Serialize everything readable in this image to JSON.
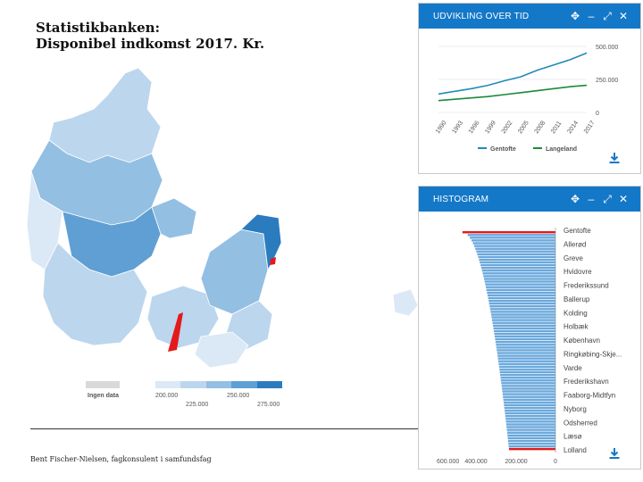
{
  "slide": {
    "title_line1": "Statistikbanken:",
    "title_line2": "Disponibel indkomst 2017. Kr.",
    "footer": "Bent Fischer-Nielsen, fagkonsulent i samfundsfag"
  },
  "map_legend": {
    "no_data_label": "Ingen data",
    "ticks_top": [
      "200.000",
      "250.000"
    ],
    "ticks_bottom": [
      "225.000",
      "275.000"
    ],
    "colors": [
      "#dbe9f6",
      "#bcd6ee",
      "#93bfe3",
      "#5f9fd3",
      "#2b7bbf"
    ],
    "no_data_color": "#d9d9d9",
    "highlight_color": "#e31a1c"
  },
  "panel_development": {
    "title": "UDVIKLING OVER TID",
    "icons": [
      "move-icon",
      "minimize-icon",
      "expand-icon",
      "close-icon"
    ],
    "chart_data": {
      "type": "line",
      "x": [
        "1990",
        "1993",
        "1996",
        "1999",
        "2002",
        "2005",
        "2008",
        "2011",
        "2014",
        "2017"
      ],
      "yticks": [
        "500.000",
        "250.000",
        "0"
      ],
      "ylim": [
        0,
        520000
      ],
      "series": [
        {
          "name": "Gentofte",
          "color": "#1f8bb8",
          "values": [
            140000,
            160000,
            180000,
            205000,
            240000,
            270000,
            320000,
            360000,
            400000,
            450000
          ]
        },
        {
          "name": "Langeland",
          "color": "#1a8a3a",
          "values": [
            90000,
            100000,
            110000,
            120000,
            135000,
            150000,
            165000,
            180000,
            195000,
            205000
          ]
        }
      ]
    }
  },
  "panel_histogram": {
    "title": "HISTOGRAM",
    "icons": [
      "move-icon",
      "minimize-icon",
      "expand-icon",
      "close-icon"
    ],
    "labels": [
      "Gentofte",
      "Allerød",
      "Greve",
      "Hvidovre",
      "Frederikssund",
      "Ballerup",
      "Kolding",
      "Holbæk",
      "København",
      "Ringkøbing-Skje...",
      "Varde",
      "Frederikshavn",
      "Faaborg-Midtfyn",
      "Nyborg",
      "Odsherred",
      "Læsø",
      "Lolland"
    ],
    "axis_ticks": [
      "600.000",
      "400.000",
      "200.000",
      "0"
    ],
    "bar_color": "#6aa8dc",
    "highlight_color": "#e31a1c",
    "values_first": 470000,
    "values_last": 235000
  }
}
